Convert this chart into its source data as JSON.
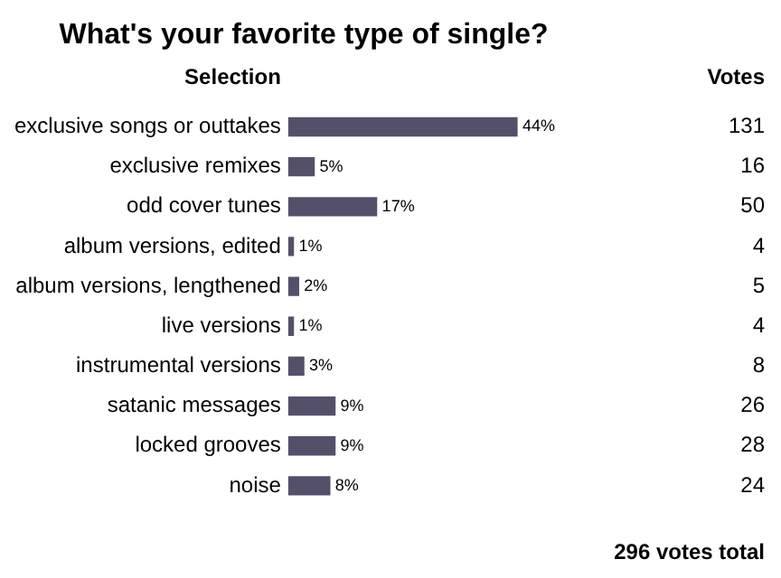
{
  "chart_data": {
    "type": "bar",
    "orientation": "horizontal",
    "title": "What's your favorite type of single?",
    "ylabel": "Selection",
    "categories": [
      "exclusive songs or outtakes",
      "exclusive remixes",
      "odd cover tunes",
      "album versions, edited",
      "album versions, lengthened",
      "live versions",
      "instrumental versions",
      "satanic messages",
      "locked grooves",
      "noise"
    ],
    "values": [
      44,
      5,
      17,
      1,
      2,
      1,
      3,
      9,
      9,
      8
    ],
    "value_labels": [
      "44%",
      "5%",
      "17%",
      "1%",
      "2%",
      "1%",
      "3%",
      "9%",
      "9%",
      "8%"
    ],
    "color": "#55506a",
    "tick_labels": "y",
    "legend": false,
    "annotations": [
      "Votes",
      "131",
      "16",
      "50",
      "4",
      "5",
      "4",
      "8",
      "26",
      "28",
      "24",
      "296 votes total"
    ]
  }
}
